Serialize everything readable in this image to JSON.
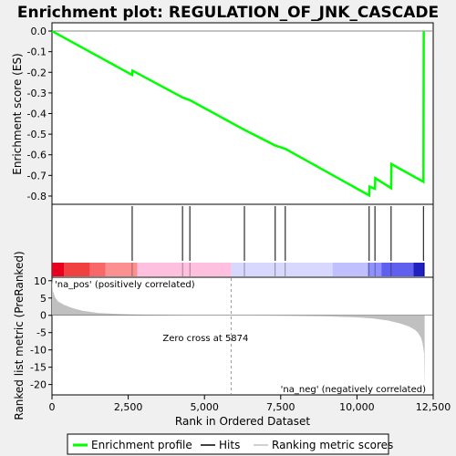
{
  "chart_data": {
    "type": "line",
    "title": "Enrichment plot: REGULATION_OF_JNK_CASCADE",
    "xlabel": "Rank in Ordered Dataset",
    "xlim": [
      0,
      12500
    ],
    "x_ticks": [
      0,
      2500,
      5000,
      7500,
      10000,
      12500
    ],
    "x_tick_labels": [
      "0",
      "2,500",
      "5,000",
      "7,500",
      "10,000",
      "12,500"
    ],
    "top_panel": {
      "ylabel": "Enrichment score (ES)",
      "ylim": [
        -0.84,
        0.04
      ],
      "y_ticks": [
        0.0,
        -0.1,
        -0.2,
        -0.3,
        -0.4,
        -0.5,
        -0.6,
        -0.7,
        -0.8
      ],
      "y_tick_labels": [
        "0.0",
        "-0.1",
        "-0.2",
        "-0.3",
        "-0.4",
        "-0.5",
        "-0.6",
        "-0.7",
        "-0.8"
      ],
      "series": [
        {
          "name": "Enrichment profile",
          "color": "#00ff00",
          "x": [
            0,
            2630,
            2640,
            4280,
            4520,
            6310,
            7320,
            7650,
            10400,
            10410,
            10590,
            10600,
            11120,
            11130,
            12180,
            12190
          ],
          "y": [
            0.0,
            -0.213,
            -0.192,
            -0.322,
            -0.335,
            -0.479,
            -0.555,
            -0.571,
            -0.797,
            -0.754,
            -0.765,
            -0.713,
            -0.762,
            -0.645,
            -0.731,
            0.0
          ]
        }
      ]
    },
    "hits": {
      "name": "Hits",
      "x": [
        2630,
        4280,
        4520,
        6310,
        7320,
        7650,
        10400,
        10590,
        11120,
        12180
      ]
    },
    "ranking_bar": {
      "colors": [
        "#e8001f",
        "#f04040",
        "#f86868",
        "#fc9090",
        "#ffc0e0",
        "#d8d8ff",
        "#b0b0ff",
        "#7070ff",
        "#3030e0",
        "#1010c0"
      ],
      "segments": [
        {
          "start": 0,
          "end": 400,
          "color": "#e8001f"
        },
        {
          "start": 400,
          "end": 1250,
          "color": "#f04040"
        },
        {
          "start": 1250,
          "end": 1750,
          "color": "#f86868"
        },
        {
          "start": 1750,
          "end": 2800,
          "color": "#fc9090"
        },
        {
          "start": 2800,
          "end": 5874,
          "color": "#ffc0e0"
        },
        {
          "start": 5874,
          "end": 9200,
          "color": "#d8d8ff"
        },
        {
          "start": 9200,
          "end": 10350,
          "color": "#c0c0ff"
        },
        {
          "start": 10350,
          "end": 10800,
          "color": "#9090ff"
        },
        {
          "start": 10800,
          "end": 11850,
          "color": "#6060ee"
        },
        {
          "start": 11850,
          "end": 12220,
          "color": "#2020c0"
        }
      ]
    },
    "bottom_panel": {
      "ylabel": "Ranked list metric (PreRanked)",
      "ylim": [
        -23,
        11
      ],
      "y_ticks": [
        10,
        5,
        0,
        -5,
        -10,
        -15,
        -20
      ],
      "y_tick_labels": [
        "10",
        "5",
        "0",
        "-5",
        "-10",
        "-15",
        "-20"
      ],
      "series": [
        {
          "name": "Ranking metric scores",
          "color": "#c0c0c0",
          "x": [
            0,
            30,
            100,
            200,
            400,
            700,
            1000,
            1500,
            2000,
            2500,
            3000,
            4000,
            5000,
            5874,
            7000,
            8000,
            9000,
            10000,
            10500,
            11000,
            11400,
            11700,
            11900,
            12000,
            12100,
            12150,
            12200,
            12220
          ],
          "y": [
            10.5,
            7.0,
            5.2,
            4.0,
            3.0,
            2.0,
            1.3,
            0.7,
            0.45,
            0.3,
            0.2,
            0.1,
            0.04,
            0.0,
            -0.1,
            -0.2,
            -0.3,
            -0.6,
            -0.9,
            -1.5,
            -2.3,
            -3.2,
            -4.2,
            -5.0,
            -6.5,
            -8.0,
            -11.0,
            -22.5
          ]
        }
      ],
      "annotations": {
        "pos_label": "'na_pos' (positively correlated)",
        "neg_label": "'na_neg' (negatively correlated)",
        "zero_cross_label": "Zero cross at 5874",
        "zero_cross": 5874
      }
    },
    "legend": {
      "placement": "bottom",
      "entries": [
        {
          "label": "Enrichment profile",
          "color": "#00ff00"
        },
        {
          "label": "Hits",
          "color": "#000000"
        },
        {
          "label": "Ranking metric scores",
          "color": "#c0c0c0"
        }
      ]
    },
    "grid": false
  }
}
